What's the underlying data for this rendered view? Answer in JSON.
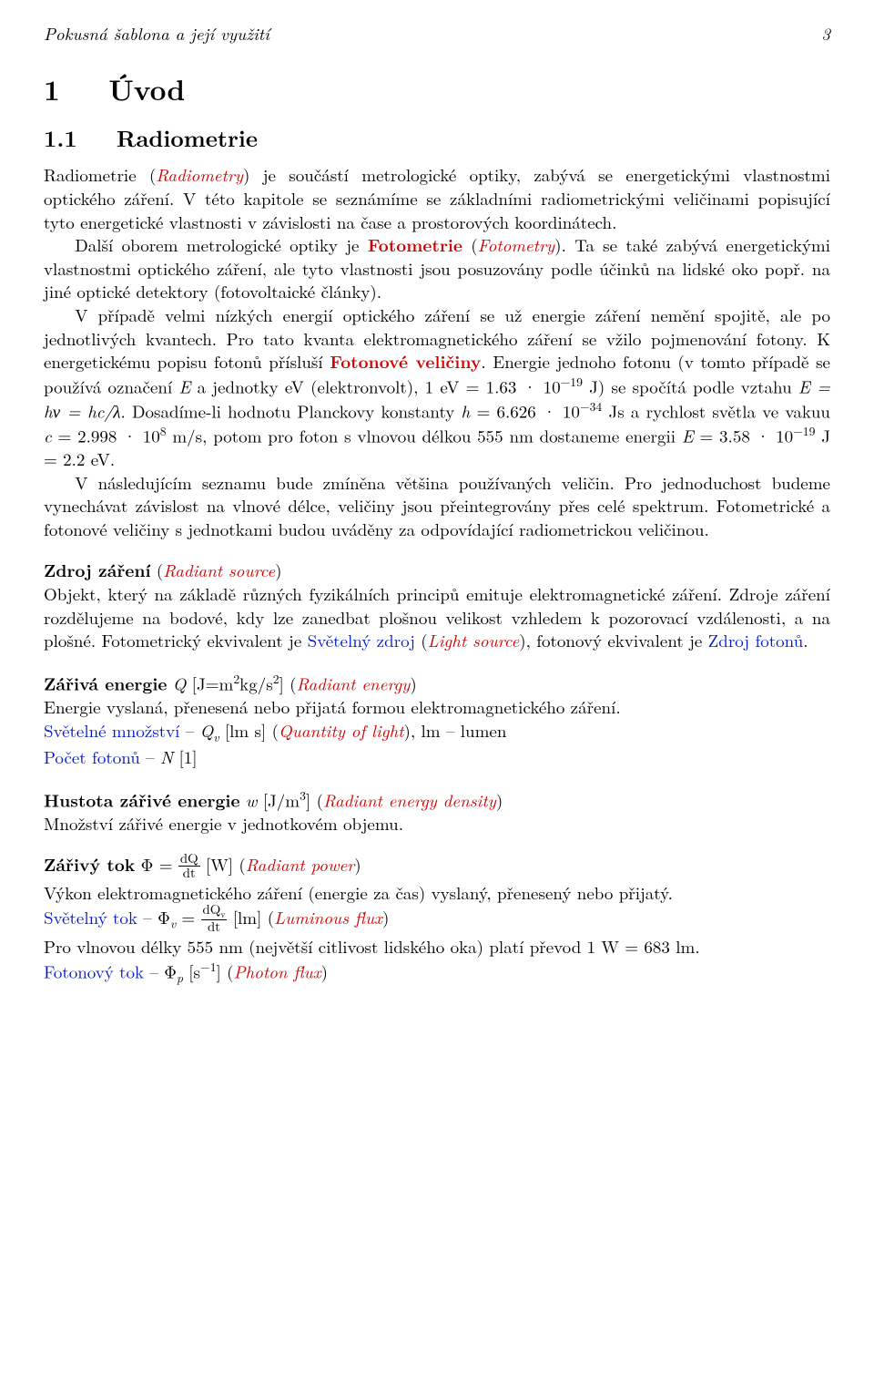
{
  "header": {
    "title": "Pokusná šablona a její využití",
    "page": "3"
  },
  "sec1": {
    "num": "1",
    "title": "Úvod"
  },
  "sec11": {
    "num": "1.1",
    "title": "Radiometrie"
  },
  "p1a": "Radiometrie (",
  "p1b": "Radiometry",
  "p1c": ") je součástí metrologické optiky, zabývá se energetickými vlastnostmi optického záření. V této kapitole se seznámíme se základními radiometrickými veličinami popisující tyto energetické vlastnosti v závislosti na čase a prostorových koordinátech.",
  "p2a": "Další oborem metrologické optiky je ",
  "p2b": "Fotometrie",
  "p2c": " (",
  "p2d": "Fotometry",
  "p2e": "). Ta se také zabývá energetickými vlastnostmi optického záření, ale tyto vlastnosti jsou posuzovány podle účinků na lidské oko popř. na jiné optické detektory (fotovoltaické články).",
  "p3a": "V případě velmi nízkých energií optického záření se už energie záření nemění spojitě, ale po jednotlivých kvantech. Pro tato kvanta elektromagnetického záření se vžilo pojmenování fotony. K energetickému popisu fotonů přísluší ",
  "p3b": "Fotonové veličiny",
  "p3c": ". Energie jednoho fotonu (v tomto případě se používá označení ",
  "p3d": "E",
  "p3e": " a jednotky eV (elektronvolt), 1 eV = 1.63 · 10",
  "p3e_exp": "−19",
  "p3f": " J) se spočítá podle vztahu ",
  "p3g": "E = hν = hc/λ",
  "p3h": ". Dosadíme-li hodnotu Planckovy konstanty ",
  "p3i": "h",
  "p3j": " = 6.626 · 10",
  "p3j_exp": "−34",
  "p3k": " Js a rychlost světla ve vakuu ",
  "p3l": "c",
  "p3m": " = 2.998 · 10",
  "p3m_exp": "8",
  "p3n": " m/s, potom pro foton s vlnovou délkou 555 nm dostaneme energii ",
  "p3o": "E",
  "p3p": " = 3.58 · 10",
  "p3p_exp": "−19",
  "p3q": " J = 2.2 eV.",
  "p4": "V následujícím seznamu bude zmíněna většina používaných veličin. Pro jednoduchost budeme vynechávat závislost na vlnové délce, veličiny jsou přeintegrovány přes celé spektrum. Fotometrické a fotonové veličiny s jednotkami budou uváděny za odpovídající radiometrickou veličinou.",
  "t1": {
    "head": "Zdroj záření",
    "paren_open": "   (",
    "en": "Radiant source",
    "paren_close": ")",
    "body_a": "Objekt, který na základě různých fyzikálních principů emituje elektromagnetické záření. Zdroje záření rozdělujeme na bodové, kdy lze zanedbat plošnou velikost vzhledem k pozorovací vzdálenosti, a na plošné. Fotometrický ekvivalent je ",
    "body_b": "Světelný zdroj",
    "body_c": " (",
    "body_d": "Light source",
    "body_e": "), fotonový ekvivalent je ",
    "body_f": "Zdroj fotonů",
    "body_g": "."
  },
  "t2": {
    "head": "Zářivá energie",
    "sym_pre": "   ",
    "sym": "Q",
    "unit_a": " [J=m",
    "unit_exp1": "2",
    "unit_b": "kg/s",
    "unit_exp2": "2",
    "unit_c": "] (",
    "en": "Radiant energy",
    "paren_close": ")",
    "body": "Energie vyslaná, přenesená nebo přijatá formou elektromagnetického záření.",
    "l2a": "Světelné množství",
    "l2b": " – ",
    "l2c": "Q",
    "l2c_sub": "v",
    "l2d": " [lm s] (",
    "l2e": "Quantity of light",
    "l2f": "), lm – lumen",
    "l3a": "Počet fotonů",
    "l3b": " – ",
    "l3c": "N",
    "l3d": " [1]"
  },
  "t3": {
    "head": "Hustota zářivé energie",
    "sym_pre": "   ",
    "sym": "w",
    "unit_a": " [J/m",
    "unit_exp": "3",
    "unit_b": "] (",
    "en": "Radiant energy density",
    "paren_close": ")",
    "body": "Množství zářivé energie v jednotkovém objemu."
  },
  "t4": {
    "head": "Zářivý tok",
    "sym_pre": "   Φ = ",
    "frac_num": "dQ",
    "frac_den": "dt",
    "unit": " [W] (",
    "en": "Radiant power",
    "paren_close": ")",
    "body": "Výkon elektromagnetického záření (energie za čas) vyslaný, přenesený nebo přijatý.",
    "l2a": "Světelný tok",
    "l2b": " – Φ",
    "l2b_sub": "v",
    "l2c": " = ",
    "l2_frac_num": "dQ",
    "l2_frac_num_sub": "v",
    "l2_frac_den": "dt",
    "l2d": " [lm] (",
    "l2e": "Luminous flux",
    "l2f": ")",
    "l3": "Pro vlnovou délky 555 nm (největší citlivost lidského oka) platí převod 1 W = 683 lm.",
    "l4a": "Fotonový tok",
    "l4b": " – Φ",
    "l4b_sub": "p",
    "l4c": " [s",
    "l4c_exp": "−1",
    "l4d": "] (",
    "l4e": "Photon flux",
    "l4f": ")"
  }
}
